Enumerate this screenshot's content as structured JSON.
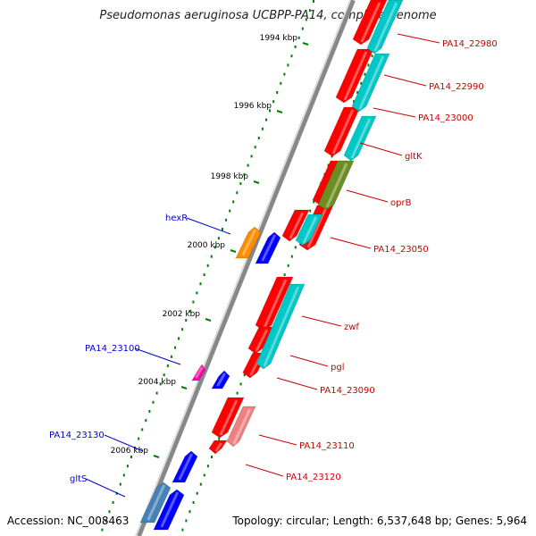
{
  "header": {
    "title": "Pseudomonas aeruginosa UCBPP-PA14, complete genome"
  },
  "footer": {
    "accession": "Accession: NC_008463",
    "summary": "Topology: circular; Length: 6,537,648 bp; Genes: 5,964"
  },
  "colors": {
    "cds": "#ff0000",
    "cds_alt": "#f08080",
    "rna": "#00c8c8",
    "oprB_track": "#6b8e23",
    "forward_gene": "#0000ff",
    "forward_gene_alt": "#4682b4",
    "orange_gene": "#ff8c00",
    "magenta_gene": "#ff00aa",
    "label_reverse": "#cc0000",
    "label_forward": "#0000cc",
    "tick": "#008000"
  },
  "ruler": {
    "ticks": [
      "1994 kbp",
      "1996 kbp",
      "1998 kbp",
      "2000 kbp",
      "2002 kbp",
      "2004 kbp",
      "2006 kbp"
    ]
  },
  "genes_reverse": [
    {
      "name": "PA14_22980",
      "color": "cds"
    },
    {
      "name": "PA14_22990",
      "color": "cds"
    },
    {
      "name": "PA14_23000",
      "color": "cds"
    },
    {
      "name": "gltK",
      "color": "cds"
    },
    {
      "name": "oprB",
      "color": "cds"
    },
    {
      "name": "PA14_23050",
      "color": "cds"
    },
    {
      "name": "zwf",
      "color": "cds"
    },
    {
      "name": "pgl",
      "color": "cds"
    },
    {
      "name": "PA14_23090",
      "color": "cds"
    },
    {
      "name": "PA14_23110",
      "color": "cds"
    },
    {
      "name": "PA14_23120",
      "color": "cds"
    }
  ],
  "genes_forward": [
    {
      "name": "hexR",
      "color": "forward_gene"
    },
    {
      "name": "PA14_23100",
      "color": "forward_gene"
    },
    {
      "name": "PA14_23130",
      "color": "forward_gene"
    },
    {
      "name": "gltS",
      "color": "forward_gene_alt"
    }
  ]
}
